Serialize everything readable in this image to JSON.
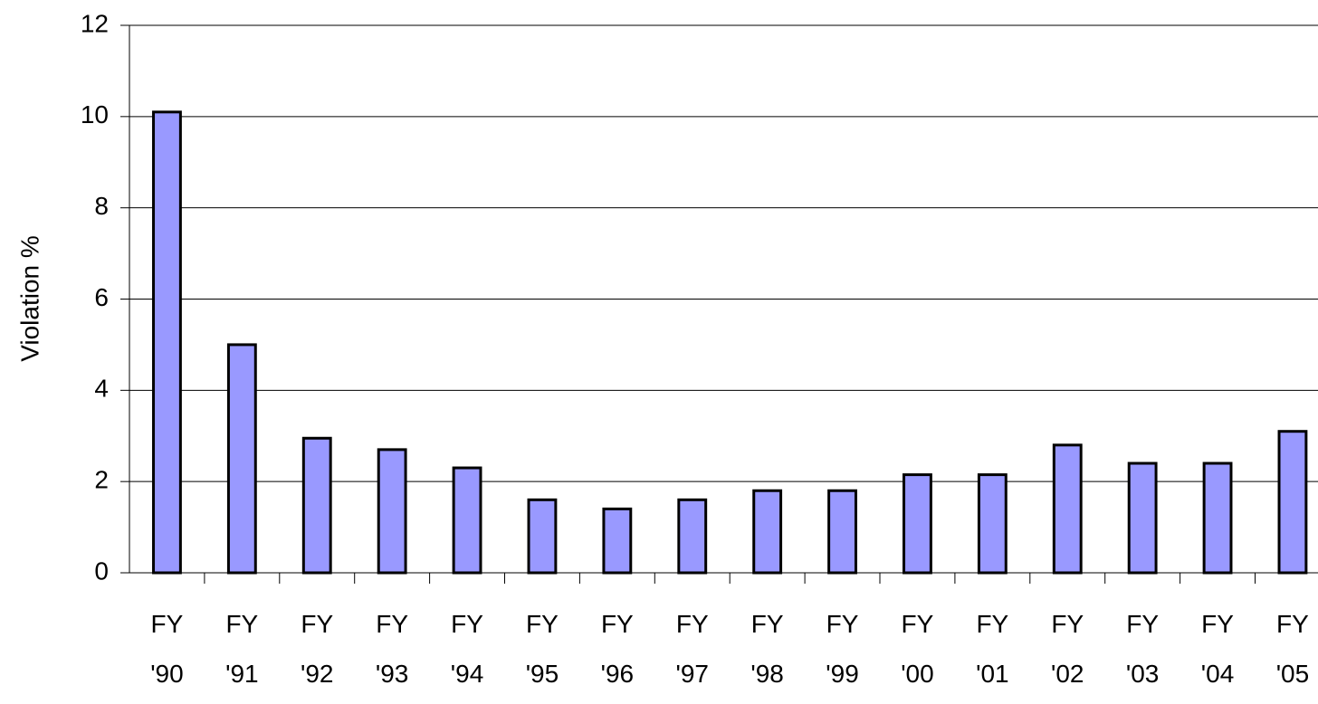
{
  "chart_data": {
    "type": "bar",
    "ylabel": "Violation %",
    "categories": [
      "FY '90",
      "FY '91",
      "FY '92",
      "FY '93",
      "FY '94",
      "FY '95",
      "FY '96",
      "FY '97",
      "FY '98",
      "FY '99",
      "FY '00",
      "FY '01",
      "FY '02",
      "FY '03",
      "FY '04",
      "FY '05"
    ],
    "values": [
      10.1,
      5.0,
      2.95,
      2.7,
      2.3,
      1.6,
      1.4,
      1.6,
      1.8,
      1.8,
      2.15,
      2.15,
      2.8,
      2.4,
      2.4,
      3.1
    ],
    "color": "#9999ff",
    "ylim": [
      0,
      12
    ],
    "yticks": [
      0,
      2,
      4,
      6,
      8,
      10,
      12
    ],
    "grid": true
  }
}
